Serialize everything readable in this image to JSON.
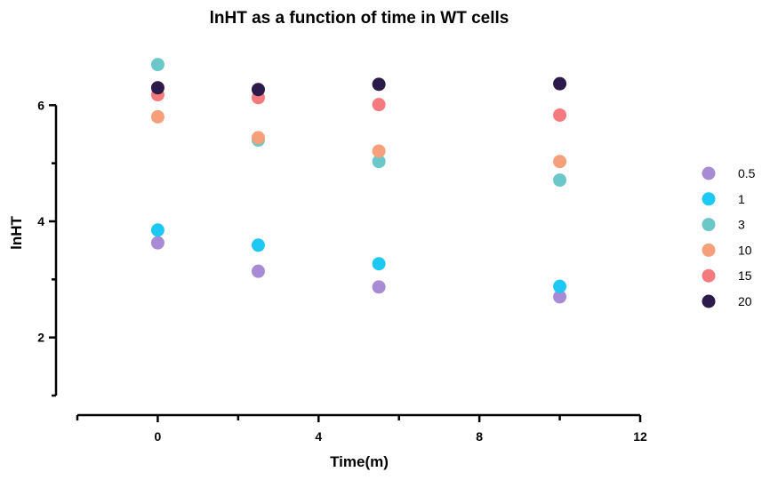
{
  "chart_data": {
    "type": "scatter",
    "title": "lnHT as a function of time in WT cells",
    "xlabel": "Time(m)",
    "ylabel": "lnHT",
    "xlim": [
      -2,
      12
    ],
    "ylim": [
      1,
      7
    ],
    "x_ticks": [
      0,
      4,
      8,
      12
    ],
    "x_minor_ticks": [
      -2,
      2,
      6,
      10
    ],
    "y_ticks": [
      2,
      4,
      6
    ],
    "y_minor_ticks": [
      1,
      3,
      5
    ],
    "grid": false,
    "legend_position": "right",
    "series": [
      {
        "name": "0.5",
        "color": "#a78bd4",
        "x": [
          0,
          2.5,
          5.5,
          10
        ],
        "y": [
          3.63,
          3.14,
          2.87,
          2.7
        ]
      },
      {
        "name": "1",
        "color": "#1ec8f5",
        "x": [
          0,
          2.5,
          5.5,
          10
        ],
        "y": [
          3.85,
          3.59,
          3.27,
          2.88
        ]
      },
      {
        "name": "3",
        "color": "#6cc7c9",
        "x": [
          0,
          2.5,
          5.5,
          10
        ],
        "y": [
          6.7,
          5.4,
          5.03,
          4.71
        ]
      },
      {
        "name": "10",
        "color": "#f5a07a",
        "x": [
          0,
          2.5,
          5.5,
          10
        ],
        "y": [
          5.8,
          5.44,
          5.21,
          5.03
        ]
      },
      {
        "name": "15",
        "color": "#f47a7d",
        "x": [
          0,
          2.5,
          5.5,
          10
        ],
        "y": [
          6.18,
          6.13,
          6.01,
          5.83
        ]
      },
      {
        "name": "20",
        "color": "#2b1a4a",
        "x": [
          0,
          2.5,
          5.5,
          10
        ],
        "y": [
          6.3,
          6.27,
          6.36,
          6.37
        ]
      }
    ]
  }
}
